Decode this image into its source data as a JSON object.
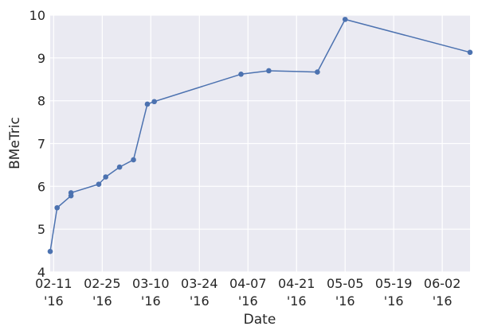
{
  "chart_data": {
    "type": "line",
    "xlabel": "Date",
    "ylabel": "BMeTric",
    "x_type": "date",
    "xlim": [
      "2016-02-10",
      "2016-06-10"
    ],
    "ylim": [
      4,
      10
    ],
    "y_ticks": [
      4,
      5,
      6,
      7,
      8,
      9,
      10
    ],
    "x_ticks": [
      {
        "date": "2016-02-11",
        "label_top": "02-11",
        "label_bottom": "'16"
      },
      {
        "date": "2016-02-25",
        "label_top": "02-25",
        "label_bottom": "'16"
      },
      {
        "date": "2016-03-10",
        "label_top": "03-10",
        "label_bottom": "'16"
      },
      {
        "date": "2016-03-24",
        "label_top": "03-24",
        "label_bottom": "'16"
      },
      {
        "date": "2016-04-07",
        "label_top": "04-07",
        "label_bottom": "'16"
      },
      {
        "date": "2016-04-21",
        "label_top": "04-21",
        "label_bottom": "'16"
      },
      {
        "date": "2016-05-05",
        "label_top": "05-05",
        "label_bottom": "'16"
      },
      {
        "date": "2016-05-19",
        "label_top": "05-19",
        "label_bottom": "'16"
      },
      {
        "date": "2016-06-02",
        "label_top": "06-02",
        "label_bottom": "'16"
      }
    ],
    "grid": true,
    "legend": "none",
    "colors": {
      "background": "#eaeaf2",
      "grid": "#ffffff",
      "line": "#4c72b0"
    },
    "series": [
      {
        "x": [
          "2016-02-10",
          "2016-02-12",
          "2016-02-16",
          "2016-02-16",
          "2016-02-24",
          "2016-02-26",
          "2016-03-01",
          "2016-03-05",
          "2016-03-09",
          "2016-03-11",
          "2016-04-05",
          "2016-04-13",
          "2016-04-27",
          "2016-05-05",
          "2016-06-10"
        ],
        "y": [
          4.48,
          5.5,
          5.78,
          5.85,
          6.05,
          6.22,
          6.45,
          6.62,
          7.92,
          7.98,
          8.62,
          8.7,
          8.67,
          9.9,
          9.13
        ]
      }
    ]
  }
}
